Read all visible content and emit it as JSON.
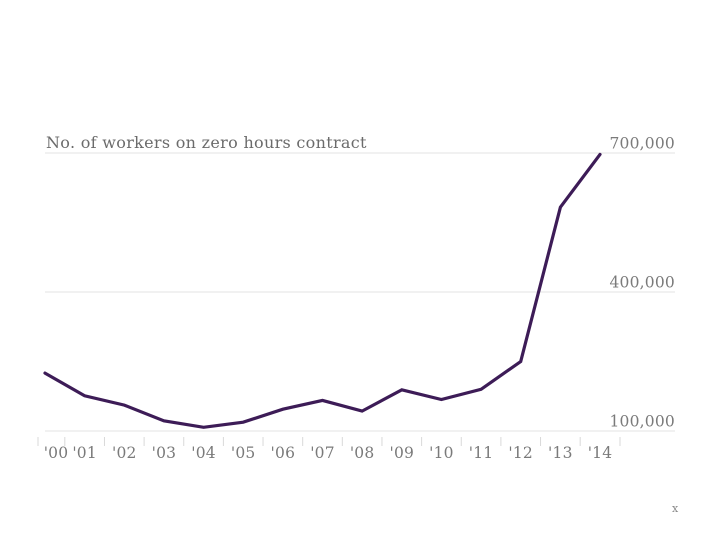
{
  "chart_data": {
    "type": "line",
    "title": "No. of workers on zero hours contract",
    "x": [
      "'00",
      "'01",
      "'02",
      "'03",
      "'04",
      "'05",
      "'06",
      "'07",
      "'08",
      "'09",
      "'10",
      "'11",
      "'12",
      "'13",
      "'14"
    ],
    "series": [
      {
        "name": "No. of workers on zero hours contract",
        "values": [
          225000,
          176000,
          156000,
          122000,
          108000,
          119000,
          147000,
          166000,
          143000,
          189000,
          168000,
          190000,
          250000,
          583000,
          697000
        ]
      }
    ],
    "ylim": [
      100000,
      700000
    ],
    "y_gridline_values": [
      700000,
      400000,
      100000
    ],
    "y_gridline_labels": [
      "700,000",
      "400,000",
      "100,000"
    ],
    "xlabel": "",
    "ylabel": "",
    "grid": "horizontal-only",
    "legend": "none",
    "colors": {
      "line": "#3d1c57",
      "gridline": "#e3e3e3",
      "tick": "#d9d9d9",
      "title_text": "#6b6b6b",
      "label_text": "#7a7a7a",
      "background": "#ffffff"
    }
  },
  "watermark": "x"
}
